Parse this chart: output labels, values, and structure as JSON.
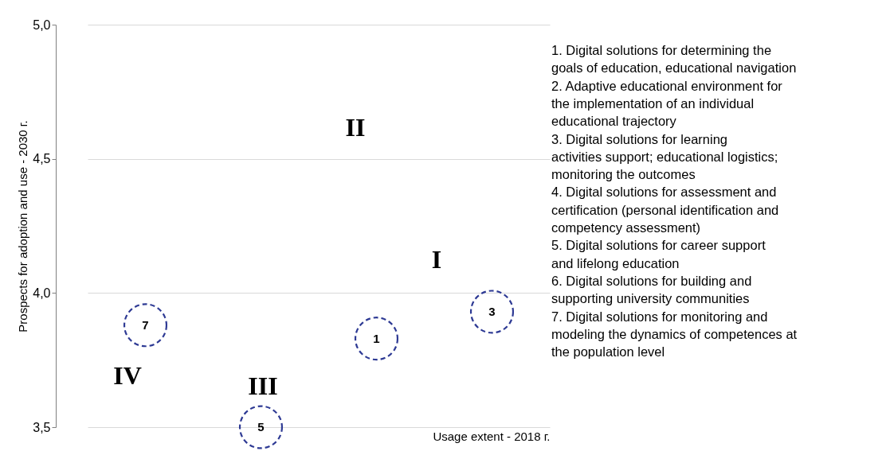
{
  "chart_data": {
    "type": "scatter",
    "xlabel": "Usage extent - 2018 г.",
    "ylabel": "Prospects for adoption and  use - 2030 г.",
    "categories": [
      null,
      null,
      null,
      null
    ],
    "series": [
      {
        "name": "7",
        "color": "#2e3a94",
        "values": [
          3.88,
          null,
          null,
          null
        ]
      },
      {
        "name": "5",
        "color": "#2e3a94",
        "values": [
          null,
          3.5,
          null,
          null
        ]
      },
      {
        "name": "1",
        "color": "#2e3a94",
        "values": [
          null,
          null,
          3.83,
          null
        ]
      },
      {
        "name": "3",
        "color": "#2e3a94",
        "values": [
          null,
          null,
          null,
          3.93
        ]
      }
    ],
    "ylim": [
      3.5,
      5.0
    ],
    "yticks": [
      {
        "value": 3.5,
        "label": "3,5"
      },
      {
        "value": 4.0,
        "label": "4,0"
      },
      {
        "value": 4.5,
        "label": "4,5"
      },
      {
        "value": 5.0,
        "label": "5,0"
      }
    ],
    "grid": "y",
    "marker": "circle",
    "line_style": "dashed",
    "tick_labels": "y",
    "annotations": [
      "I",
      "II",
      "III",
      "IV",
      "1. Digital solutions for determining the goals of education, educational navigation",
      "2. Adaptive educational environment for the implementation of an individual educational trajectory",
      "3. Digital solutions for learning activities support; educational logistics; monitoring the outcomes",
      "4. Digital solutions for assessment and certification (personal identification and competency assessment)",
      "5. Digital solutions for career support and lifelong education",
      "6. Digital solutions for building and supporting university communities",
      "7. Digital solutions for monitoring and modeling the dynamics of competences at the population level"
    ]
  }
}
